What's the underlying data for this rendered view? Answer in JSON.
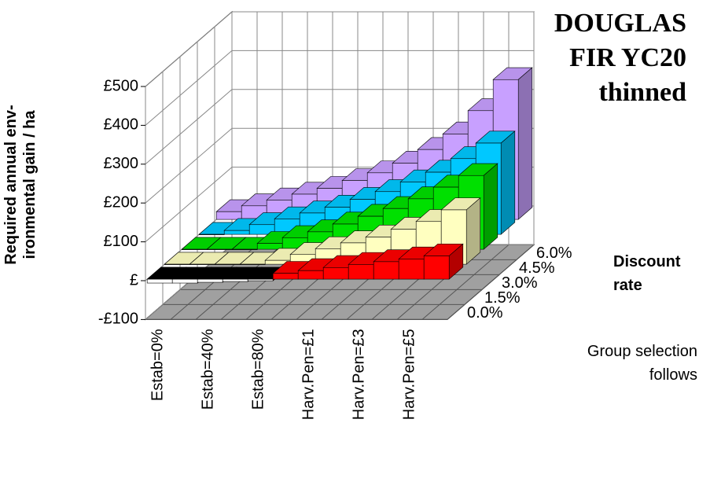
{
  "chart_data": {
    "type": "bar3d",
    "title": "DOUGLAS FIR YC20 thinned",
    "y_label": "Required annual env-ironmental gain / ha",
    "z_label": "Discount rate",
    "note": "Group selection follows",
    "categories": [
      "Estab=0%",
      null,
      "Estab=40%",
      null,
      "Estab=80%",
      null,
      "Harv.Pen=£1",
      null,
      "Harv.Pen=£3",
      null,
      "Harv.Pen=£5",
      null
    ],
    "series": [
      {
        "name": "0.0%",
        "color": "#ff0000",
        "values": [
          -10,
          -10,
          -8,
          -6,
          -4,
          15,
          22,
          30,
          38,
          45,
          52,
          60
        ]
      },
      {
        "name": "1.5%",
        "color": "#ffffc0",
        "values": [
          0,
          0,
          0,
          0,
          10,
          25,
          40,
          55,
          70,
          90,
          110,
          140
        ]
      },
      {
        "name": "3.0%",
        "color": "#00e000",
        "values": [
          0,
          0,
          0,
          15,
          30,
          45,
          65,
          85,
          105,
          130,
          160,
          190
        ]
      },
      {
        "name": "4.5%",
        "color": "#00c8ff",
        "values": [
          0,
          10,
          25,
          40,
          55,
          70,
          90,
          110,
          135,
          160,
          195,
          235
        ]
      },
      {
        "name": "6.0%",
        "color": "#c8a0ff",
        "values": [
          20,
          35,
          50,
          65,
          80,
          100,
          120,
          145,
          180,
          220,
          280,
          360
        ]
      }
    ],
    "ylim": [
      -100,
      500
    ],
    "yticks": [
      {
        "value": -100,
        "label": "-£100"
      },
      {
        "value": 0,
        "label": "£"
      },
      {
        "value": 100,
        "label": "£100"
      },
      {
        "value": 200,
        "label": "£200"
      },
      {
        "value": 300,
        "label": "£300"
      },
      {
        "value": 400,
        "label": "£400"
      },
      {
        "value": 500,
        "label": "£500"
      }
    ],
    "grid": true
  }
}
